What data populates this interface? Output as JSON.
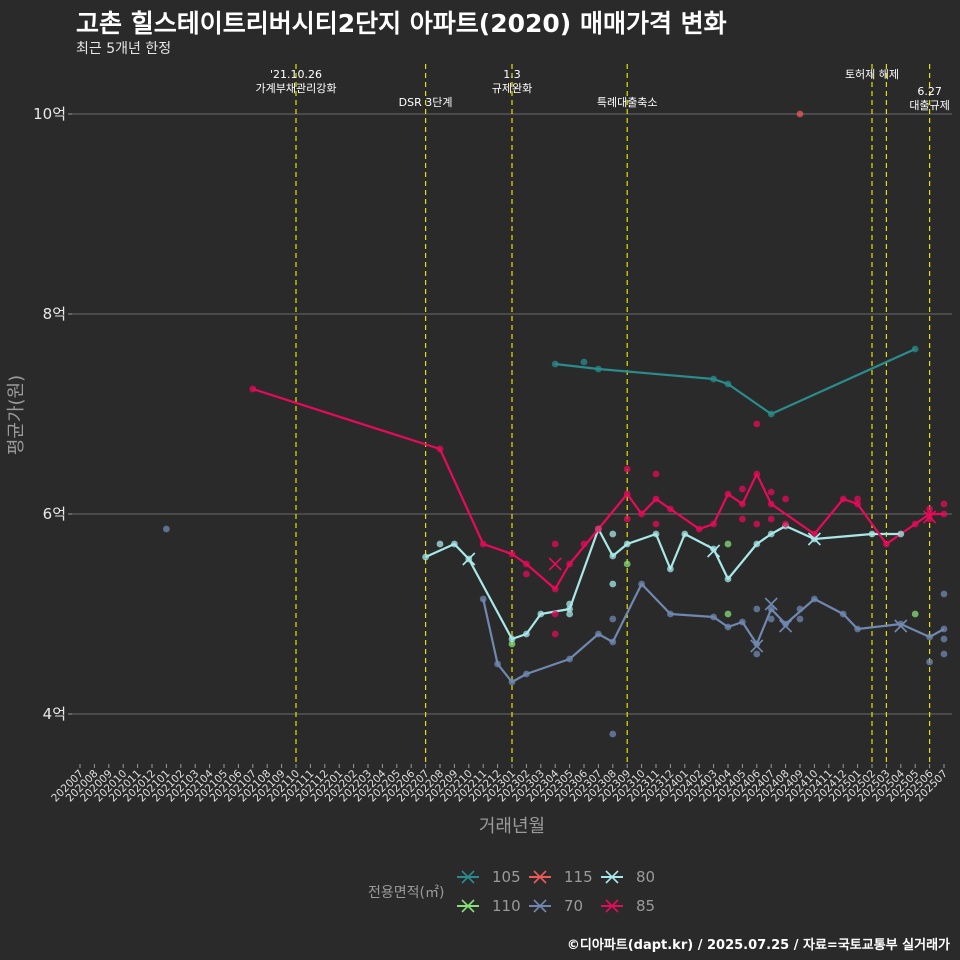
{
  "header": {
    "title": "고촌 힐스테이트리버시티2단지 아파트(2020) 매매가격 변화",
    "subtitle": "최근 5개년 한정"
  },
  "footer": {
    "caption": "©디아파트(dapt.kr) / 2025.07.25 / 자료=국토교통부 실거래가"
  },
  "colors": {
    "background": "#2a2a2b",
    "grid": "#6b6b6b",
    "event_line": "#e8e000",
    "105": "#2a8c8c",
    "110": "#86e07a",
    "115": "#ee5a5a",
    "70": "#7088b0",
    "80": "#a8e8e8",
    "85": "#e80a5a"
  },
  "chart_data": {
    "type": "line",
    "title": "고촌 힐스테이트리버시티2단지 아파트(2020) 매매가격 변화",
    "xlabel": "거래년월",
    "ylabel": "평균가(원)",
    "ylim": [
      3.5,
      10.5
    ],
    "y_ticks": [
      4,
      6,
      8,
      10
    ],
    "y_tick_labels": [
      "4억",
      "6억",
      "8억",
      "10억"
    ],
    "months": [
      "202007",
      "202008",
      "202009",
      "202010",
      "202011",
      "202012",
      "202101",
      "202102",
      "202103",
      "202104",
      "202105",
      "202106",
      "202107",
      "202108",
      "202109",
      "202110",
      "202111",
      "202112",
      "202201",
      "202202",
      "202203",
      "202204",
      "202205",
      "202206",
      "202207",
      "202208",
      "202209",
      "202210",
      "202211",
      "202212",
      "202301",
      "202302",
      "202303",
      "202304",
      "202305",
      "202306",
      "202307",
      "202308",
      "202309",
      "202310",
      "202311",
      "202312",
      "202401",
      "202402",
      "202403",
      "202404",
      "202405",
      "202406",
      "202407",
      "202408",
      "202409",
      "202410",
      "202411",
      "202412",
      "202501",
      "202502",
      "202503",
      "202504",
      "202505",
      "202506",
      "202507"
    ],
    "events": [
      {
        "month": "202110",
        "label": "'21.10.26\n가계부채관리강화",
        "line": 1
      },
      {
        "month": "202207",
        "label": "DSR 3단계",
        "line": 2
      },
      {
        "month": "202301",
        "label": "1.3\n규제완화",
        "line": 1
      },
      {
        "month": "202309",
        "label": "특례대출축소",
        "line": 2
      },
      {
        "month": "202502",
        "label": "토허제 해제",
        "line": 1
      },
      {
        "month": "202503",
        "label": "",
        "line": 1
      },
      {
        "month": "202506",
        "label": "6.27\n대출규제",
        "line": 1.6
      }
    ],
    "legend_title": "전용면적(㎡)",
    "legend_order": [
      "105",
      "110",
      "115",
      "70",
      "80",
      "85"
    ],
    "series": [
      {
        "name": "105",
        "line": [
          [
            "202304",
            7.5
          ],
          [
            "202307",
            7.45
          ],
          [
            "202403",
            7.35
          ],
          [
            "202404",
            7.3
          ],
          [
            "202407",
            7.0
          ],
          [
            "202505",
            7.65
          ]
        ],
        "points": [
          [
            "202304",
            7.5
          ],
          [
            "202306",
            7.52
          ],
          [
            "202307",
            7.45
          ],
          [
            "202403",
            7.35
          ],
          [
            "202404",
            7.3
          ],
          [
            "202407",
            7.0
          ],
          [
            "202505",
            7.65
          ]
        ]
      },
      {
        "name": "110",
        "line": [],
        "points": [
          [
            "202301",
            4.7
          ],
          [
            "202309",
            5.5
          ],
          [
            "202404",
            5.7
          ],
          [
            "202404",
            5.0
          ],
          [
            "202505",
            5.0
          ]
        ]
      },
      {
        "name": "115",
        "line": [],
        "points": [
          [
            "202409",
            10.0
          ]
        ]
      },
      {
        "name": "70",
        "line": [
          [
            "202211",
            5.15
          ],
          [
            "202212",
            4.5
          ],
          [
            "202301",
            4.32
          ],
          [
            "202302",
            4.4
          ],
          [
            "202305",
            4.55
          ],
          [
            "202307",
            4.8
          ],
          [
            "202308",
            4.72
          ],
          [
            "202310",
            5.3
          ],
          [
            "202312",
            5.0
          ],
          [
            "202403",
            4.97
          ],
          [
            "202404",
            4.87
          ],
          [
            "202405",
            4.92
          ],
          [
            "202406",
            4.7
          ],
          [
            "202407",
            5.05
          ],
          [
            "202408",
            4.9
          ],
          [
            "202410",
            5.15
          ],
          [
            "202412",
            5.0
          ],
          [
            "202501",
            4.85
          ],
          [
            "202504",
            4.9
          ],
          [
            "202506",
            4.77
          ],
          [
            "202507",
            4.85
          ]
        ],
        "points": [
          [
            "202101",
            5.85
          ],
          [
            "202211",
            5.15
          ],
          [
            "202212",
            4.5
          ],
          [
            "202301",
            4.32
          ],
          [
            "202302",
            4.4
          ],
          [
            "202305",
            4.55
          ],
          [
            "202307",
            4.8
          ],
          [
            "202308",
            4.72
          ],
          [
            "202308",
            4.95
          ],
          [
            "202308",
            3.8
          ],
          [
            "202310",
            5.3
          ],
          [
            "202312",
            5.0
          ],
          [
            "202403",
            4.97
          ],
          [
            "202404",
            4.87
          ],
          [
            "202405",
            4.92
          ],
          [
            "202406",
            4.7
          ],
          [
            "202406",
            4.6
          ],
          [
            "202406",
            5.05
          ],
          [
            "202407",
            5.05
          ],
          [
            "202407",
            4.95
          ],
          [
            "202408",
            4.9
          ],
          [
            "202409",
            4.95
          ],
          [
            "202409",
            5.05
          ],
          [
            "202410",
            5.15
          ],
          [
            "202412",
            5.0
          ],
          [
            "202501",
            4.85
          ],
          [
            "202504",
            4.9
          ],
          [
            "202506",
            4.77
          ],
          [
            "202506",
            4.52
          ],
          [
            "202507",
            4.85
          ],
          [
            "202507",
            4.6
          ],
          [
            "202507",
            4.75
          ],
          [
            "202507",
            5.2
          ]
        ]
      },
      {
        "name": "80",
        "line": [
          [
            "202207",
            5.57
          ],
          [
            "202209",
            5.7
          ],
          [
            "202210",
            5.55
          ],
          [
            "202301",
            4.75
          ],
          [
            "202302",
            4.8
          ],
          [
            "202303",
            5.0
          ],
          [
            "202305",
            5.05
          ],
          [
            "202307",
            5.85
          ],
          [
            "202308",
            5.58
          ],
          [
            "202309",
            5.7
          ],
          [
            "202311",
            5.8
          ],
          [
            "202312",
            5.45
          ],
          [
            "202401",
            5.8
          ],
          [
            "202403",
            5.65
          ],
          [
            "202404",
            5.35
          ],
          [
            "202406",
            5.7
          ],
          [
            "202407",
            5.8
          ],
          [
            "202408",
            5.88
          ],
          [
            "202410",
            5.75
          ],
          [
            "202502",
            5.8
          ],
          [
            "202504",
            5.8
          ]
        ],
        "points": [
          [
            "202207",
            5.57
          ],
          [
            "202208",
            5.7
          ],
          [
            "202209",
            5.7
          ],
          [
            "202210",
            5.55
          ],
          [
            "202301",
            4.75
          ],
          [
            "202302",
            4.8
          ],
          [
            "202303",
            5.0
          ],
          [
            "202305",
            5.05
          ],
          [
            "202305",
            5.0
          ],
          [
            "202305",
            5.1
          ],
          [
            "202307",
            5.85
          ],
          [
            "202308",
            5.58
          ],
          [
            "202308",
            5.3
          ],
          [
            "202308",
            5.8
          ],
          [
            "202309",
            5.7
          ],
          [
            "202311",
            5.8
          ],
          [
            "202312",
            5.45
          ],
          [
            "202401",
            5.8
          ],
          [
            "202403",
            5.65
          ],
          [
            "202404",
            5.35
          ],
          [
            "202406",
            5.7
          ],
          [
            "202407",
            5.8
          ],
          [
            "202408",
            5.88
          ],
          [
            "202410",
            5.75
          ],
          [
            "202502",
            5.8
          ],
          [
            "202504",
            5.8
          ]
        ]
      },
      {
        "name": "85",
        "line": [
          [
            "202107",
            7.25
          ],
          [
            "202208",
            6.65
          ],
          [
            "202211",
            5.7
          ],
          [
            "202301",
            5.6
          ],
          [
            "202302",
            5.5
          ],
          [
            "202304",
            5.25
          ],
          [
            "202305",
            5.5
          ],
          [
            "202307",
            5.85
          ],
          [
            "202309",
            6.2
          ],
          [
            "202310",
            6.0
          ],
          [
            "202311",
            6.15
          ],
          [
            "202312",
            6.05
          ],
          [
            "202402",
            5.85
          ],
          [
            "202403",
            5.9
          ],
          [
            "202404",
            6.2
          ],
          [
            "202405",
            6.1
          ],
          [
            "202406",
            6.4
          ],
          [
            "202407",
            6.1
          ],
          [
            "202410",
            5.8
          ],
          [
            "202412",
            6.15
          ],
          [
            "202501",
            6.1
          ],
          [
            "202503",
            5.7
          ],
          [
            "202505",
            5.9
          ],
          [
            "202506",
            6.0
          ],
          [
            "202507",
            6.0
          ]
        ],
        "points": [
          [
            "202107",
            7.25
          ],
          [
            "202208",
            6.65
          ],
          [
            "202211",
            5.7
          ],
          [
            "202301",
            5.6
          ],
          [
            "202302",
            5.5
          ],
          [
            "202302",
            5.4
          ],
          [
            "202304",
            5.25
          ],
          [
            "202304",
            5.7
          ],
          [
            "202304",
            5.0
          ],
          [
            "202304",
            4.8
          ],
          [
            "202305",
            5.5
          ],
          [
            "202306",
            5.7
          ],
          [
            "202307",
            5.85
          ],
          [
            "202309",
            6.2
          ],
          [
            "202309",
            6.45
          ],
          [
            "202309",
            5.95
          ],
          [
            "202310",
            6.0
          ],
          [
            "202311",
            6.15
          ],
          [
            "202311",
            6.4
          ],
          [
            "202311",
            5.9
          ],
          [
            "202312",
            6.05
          ],
          [
            "202402",
            5.85
          ],
          [
            "202403",
            5.9
          ],
          [
            "202404",
            6.2
          ],
          [
            "202405",
            6.1
          ],
          [
            "202405",
            6.25
          ],
          [
            "202405",
            5.95
          ],
          [
            "202406",
            6.4
          ],
          [
            "202406",
            6.9
          ],
          [
            "202406",
            5.9
          ],
          [
            "202407",
            6.1
          ],
          [
            "202407",
            6.22
          ],
          [
            "202407",
            5.95
          ],
          [
            "202408",
            6.15
          ],
          [
            "202408",
            5.9
          ],
          [
            "202410",
            5.8
          ],
          [
            "202412",
            6.15
          ],
          [
            "202501",
            6.1
          ],
          [
            "202501",
            6.15
          ],
          [
            "202503",
            5.7
          ],
          [
            "202505",
            5.9
          ],
          [
            "202506",
            6.0
          ],
          [
            "202506",
            6.05
          ],
          [
            "202506",
            5.95
          ],
          [
            "202507",
            6.0
          ],
          [
            "202507",
            6.1
          ]
        ]
      }
    ],
    "x_markers": [
      {
        "series": "80",
        "month": "202210",
        "value": 5.55
      },
      {
        "series": "85",
        "month": "202304",
        "value": 5.5
      },
      {
        "series": "80",
        "month": "202403",
        "value": 5.63
      },
      {
        "series": "70",
        "month": "202406",
        "value": 4.68
      },
      {
        "series": "70",
        "month": "202407",
        "value": 5.1
      },
      {
        "series": "70",
        "month": "202408",
        "value": 4.88
      },
      {
        "series": "80",
        "month": "202410",
        "value": 5.75
      },
      {
        "series": "70",
        "month": "202504",
        "value": 4.88
      },
      {
        "series": "85",
        "month": "202506",
        "value": 5.97
      }
    ]
  }
}
